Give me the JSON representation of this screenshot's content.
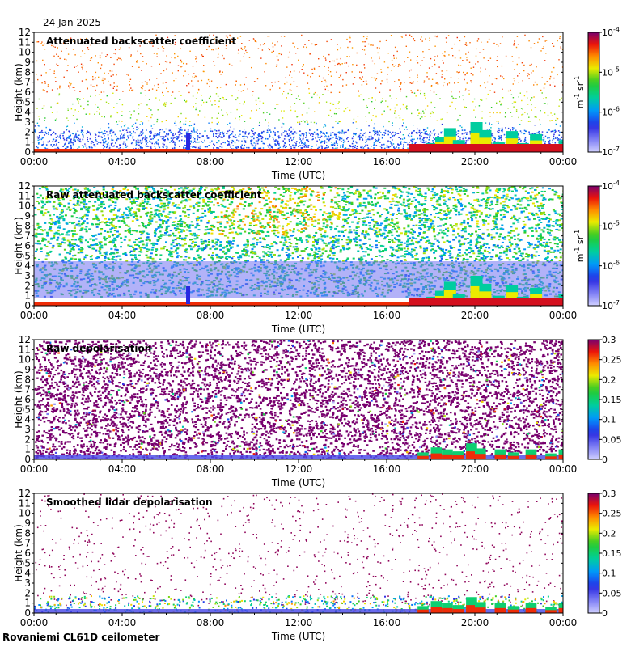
{
  "date": "24 Jan 2025",
  "footer": "Rovaniemi CL61D ceilometer",
  "chart_data": [
    {
      "type": "heatmap",
      "title": "Attenuated backscatter coefficient",
      "xlabel": "Time (UTC)",
      "ylabel": "Height (km)",
      "x_ticks": [
        "00:00",
        "04:00",
        "08:00",
        "12:00",
        "16:00",
        "20:00",
        "00:00"
      ],
      "y_ticks": [
        "0",
        "1",
        "2",
        "3",
        "4",
        "5",
        "6",
        "7",
        "8",
        "9",
        "10",
        "11",
        "12"
      ],
      "ylim": [
        0,
        12
      ],
      "xlim_hours": [
        0,
        24
      ],
      "colorbar": {
        "scale": "log",
        "min": 1e-07,
        "max": 0.0001,
        "ticks": [
          {
            "base": "10",
            "exp": "-7"
          },
          {
            "base": "10",
            "exp": "-6"
          },
          {
            "base": "10",
            "exp": "-5"
          },
          {
            "base": "10",
            "exp": "-4"
          }
        ],
        "unit": {
          "m": "m",
          "m_exp": "-1",
          "sr": "sr",
          "sr_exp": "-1"
        }
      },
      "grid": false
    },
    {
      "type": "heatmap",
      "title": "Raw attenuated backscatter coefficient",
      "xlabel": "Time (UTC)",
      "ylabel": "Height (km)",
      "x_ticks": [
        "00:00",
        "04:00",
        "08:00",
        "12:00",
        "16:00",
        "20:00",
        "00:00"
      ],
      "y_ticks": [
        "0",
        "1",
        "2",
        "3",
        "4",
        "5",
        "6",
        "7",
        "8",
        "9",
        "10",
        "11",
        "12"
      ],
      "ylim": [
        0,
        12
      ],
      "xlim_hours": [
        0,
        24
      ],
      "colorbar": {
        "scale": "log",
        "min": 1e-07,
        "max": 0.0001,
        "ticks": [
          {
            "base": "10",
            "exp": "-7"
          },
          {
            "base": "10",
            "exp": "-6"
          },
          {
            "base": "10",
            "exp": "-5"
          },
          {
            "base": "10",
            "exp": "-4"
          }
        ],
        "unit": {
          "m": "m",
          "m_exp": "-1",
          "sr": "sr",
          "sr_exp": "-1"
        }
      },
      "grid": false
    },
    {
      "type": "heatmap",
      "title": "Raw depolarisation",
      "xlabel": "Time (UTC)",
      "ylabel": "Height (km)",
      "x_ticks": [
        "00:00",
        "04:00",
        "08:00",
        "12:00",
        "16:00",
        "20:00",
        "00:00"
      ],
      "y_ticks": [
        "0",
        "1",
        "2",
        "3",
        "4",
        "5",
        "6",
        "7",
        "8",
        "9",
        "10",
        "11",
        "12"
      ],
      "ylim": [
        0,
        12
      ],
      "xlim_hours": [
        0,
        24
      ],
      "colorbar": {
        "scale": "linear",
        "min": 0,
        "max": 0.3,
        "ticks": [
          "0",
          "0.05",
          "0.1",
          "0.15",
          "0.2",
          "0.25",
          "0.3"
        ]
      },
      "grid": false
    },
    {
      "type": "heatmap",
      "title": "Smoothed lidar depolarisation",
      "xlabel": "Time (UTC)",
      "ylabel": "Height (km)",
      "x_ticks": [
        "00:00",
        "04:00",
        "08:00",
        "12:00",
        "16:00",
        "20:00",
        "00:00"
      ],
      "y_ticks": [
        "0",
        "1",
        "2",
        "3",
        "4",
        "5",
        "6",
        "7",
        "8",
        "9",
        "10",
        "11",
        "12"
      ],
      "ylim": [
        0,
        12
      ],
      "xlim_hours": [
        0,
        24
      ],
      "colorbar": {
        "scale": "linear",
        "min": 0,
        "max": 0.3,
        "ticks": [
          "0",
          "0.05",
          "0.1",
          "0.15",
          "0.2",
          "0.25",
          "0.3"
        ]
      },
      "grid": false
    }
  ]
}
